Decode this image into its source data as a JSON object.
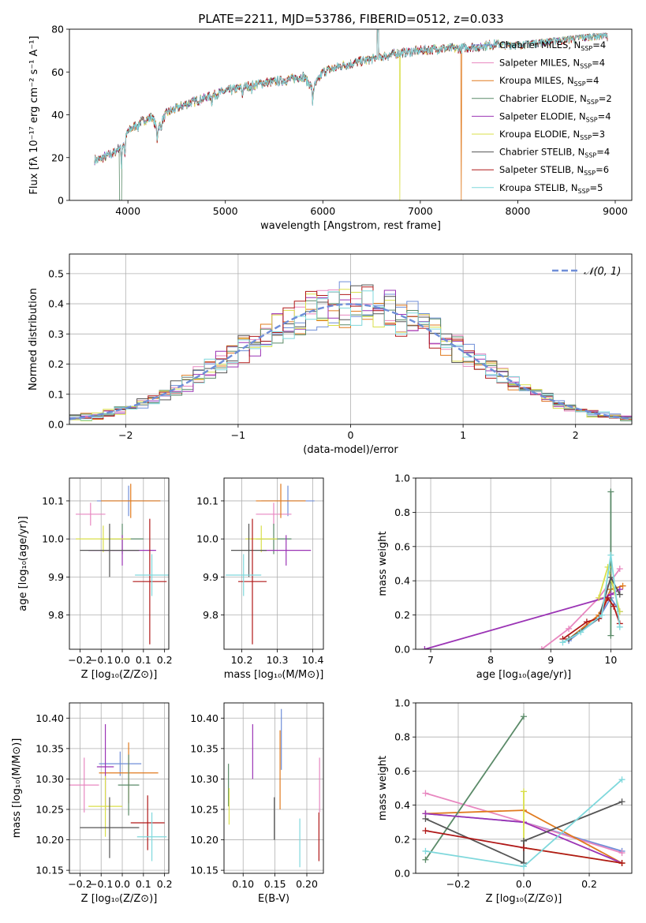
{
  "figure_title": "PLATE=2211, MJD=53786, FIBERID=0512, z=0.033",
  "chart_data": [
    {
      "id": "spectrum",
      "type": "line",
      "title": "PLATE=2211, MJD=53786, FIBERID=0512, z=0.033",
      "xlabel": "wavelength [Angstrom, rest frame]",
      "ylabel": "Flux [fλ 10⁻¹⁷ erg cm⁻² s⁻¹ A⁻¹]",
      "xlim": [
        3400,
        9170
      ],
      "ylim": [
        0,
        80
      ],
      "xticks": [
        4000,
        5000,
        6000,
        7000,
        8000,
        9000
      ],
      "yticks": [
        0,
        20,
        40,
        60,
        80
      ],
      "grid": false,
      "legend_position": "top-right",
      "continuum_x": [
        3700,
        3850,
        3950,
        4000,
        4100,
        4250,
        4300,
        4400,
        4600,
        4800,
        5000,
        5200,
        5400,
        5600,
        5800,
        5900,
        6000,
        6200,
        6400,
        6600,
        6800,
        7000,
        7200,
        7400,
        7600,
        7800,
        8000,
        8200,
        8400,
        8600,
        8800,
        8900
      ],
      "continuum_y": [
        19,
        22,
        26,
        32,
        36,
        39,
        33,
        41,
        45,
        48,
        51,
        53,
        55,
        56,
        58,
        52,
        60,
        63,
        65,
        67,
        69,
        70,
        71,
        71,
        72,
        73,
        73,
        74,
        75,
        76,
        77,
        77
      ],
      "series": [
        {
          "name": "Chabrier MILES, N_SSP=4",
          "color": "#6f8ed8",
          "cutoff": null
        },
        {
          "name": "Salpeter MILES, N_SSP=4",
          "color": "#e887c0",
          "cutoff": null
        },
        {
          "name": "Kroupa MILES, N_SSP=4",
          "color": "#e07a1e",
          "cutoff": 7420
        },
        {
          "name": "Chabrier ELODIE, N_SSP=2",
          "color": "#5a8a68",
          "cutoff": null
        },
        {
          "name": "Salpeter ELODIE, N_SSP=4",
          "color": "#9b34b5",
          "cutoff": null
        },
        {
          "name": "Kroupa ELODIE, N_SSP=3",
          "color": "#d9df4a",
          "cutoff": 6790
        },
        {
          "name": "Chabrier STELIB, N_SSP=4",
          "color": "#555555",
          "cutoff": null
        },
        {
          "name": "Salpeter STELIB, N_SSP=6",
          "color": "#b01818",
          "cutoff": null
        },
        {
          "name": "Kroupa STELIB, N_SSP=5",
          "color": "#7fd8dc",
          "cutoff": null
        }
      ]
    },
    {
      "id": "residuals",
      "type": "histogram",
      "xlabel": "(data-model)/error",
      "ylabel": "Normed distribution",
      "xlim": [
        -2.5,
        2.5
      ],
      "ylim": [
        0,
        0.565
      ],
      "xticks": [
        -2,
        -1,
        0,
        1,
        2
      ],
      "yticks": [
        0.0,
        0.1,
        0.2,
        0.3,
        0.4,
        0.5
      ],
      "grid": true,
      "legend_position": "top-right",
      "reference_curve": {
        "name": "𝒩(0, 1)",
        "color": "#6f8ed8",
        "mean": 0,
        "sigma": 1
      }
    },
    {
      "id": "age_vs_Z",
      "type": "errorbar",
      "xlabel": "Z [log₁₀(Z/Z⊙)]",
      "ylabel": "age  [log₁₀(age/yr)]",
      "xlim": [
        -0.25,
        0.22
      ],
      "ylim": [
        9.71,
        10.16
      ],
      "xticks": [
        -0.2,
        -0.1,
        0.0,
        0.1,
        0.2
      ],
      "yticks": [
        9.8,
        9.9,
        10.0,
        10.1
      ],
      "grid": true,
      "points": [
        {
          "x": 0.03,
          "xerr": 0.15,
          "y": 10.1,
          "yerr": 0.04,
          "color": "#6f8ed8"
        },
        {
          "x": -0.15,
          "xerr": 0.07,
          "y": 10.065,
          "yerr": 0.03,
          "color": "#e887c0"
        },
        {
          "x": 0.04,
          "xerr": 0.14,
          "y": 10.1,
          "yerr": 0.045,
          "color": "#e07a1e"
        },
        {
          "x": 0.0,
          "xerr": 0.1,
          "y": 10.0,
          "yerr": 0.04,
          "color": "#5a8a68"
        },
        {
          "x": 0.0,
          "xerr": 0.16,
          "y": 9.97,
          "yerr": 0.04,
          "color": "#9b34b5"
        },
        {
          "x": -0.09,
          "xerr": 0.13,
          "y": 10.0,
          "yerr": 0.035,
          "color": "#d9df4a"
        },
        {
          "x": -0.06,
          "xerr": 0.14,
          "y": 9.97,
          "yerr": 0.07,
          "color": "#555555"
        },
        {
          "x": 0.13,
          "xerr": 0.08,
          "y": 9.888,
          "yerr": 0.165,
          "color": "#b01818"
        },
        {
          "x": 0.14,
          "xerr": 0.08,
          "y": 9.905,
          "yerr": 0.055,
          "color": "#7fd8dc"
        }
      ]
    },
    {
      "id": "age_vs_mass",
      "type": "errorbar",
      "xlabel": "mass [log₁₀(M/M⊙)]",
      "ylabel": "",
      "xlim": [
        10.15,
        10.43
      ],
      "ylim": [
        9.71,
        10.16
      ],
      "xticks": [
        10.2,
        10.3,
        10.4
      ],
      "yticks": [
        9.8,
        9.9,
        10.0,
        10.1
      ],
      "grid": true,
      "points": [
        {
          "x": 10.33,
          "xerr": 0.075,
          "y": 10.1,
          "yerr": 0.04,
          "color": "#6f8ed8"
        },
        {
          "x": 10.29,
          "xerr": 0.05,
          "y": 10.065,
          "yerr": 0.03,
          "color": "#e887c0"
        },
        {
          "x": 10.31,
          "xerr": 0.07,
          "y": 10.1,
          "yerr": 0.045,
          "color": "#e07a1e"
        },
        {
          "x": 10.29,
          "xerr": 0.05,
          "y": 10.0,
          "yerr": 0.04,
          "color": "#5a8a68"
        },
        {
          "x": 10.325,
          "xerr": 0.07,
          "y": 9.97,
          "yerr": 0.04,
          "color": "#9b34b5"
        },
        {
          "x": 10.255,
          "xerr": 0.045,
          "y": 10.0,
          "yerr": 0.035,
          "color": "#d9df4a"
        },
        {
          "x": 10.22,
          "xerr": 0.05,
          "y": 9.97,
          "yerr": 0.07,
          "color": "#555555"
        },
        {
          "x": 10.23,
          "xerr": 0.04,
          "y": 9.888,
          "yerr": 0.165,
          "color": "#b01818"
        },
        {
          "x": 10.205,
          "xerr": 0.05,
          "y": 9.905,
          "yerr": 0.055,
          "color": "#7fd8dc"
        }
      ]
    },
    {
      "id": "massweight_vs_age",
      "type": "line",
      "xlabel": "age  [log₁₀(age/yr)]",
      "ylabel": "mass weight",
      "xlim": [
        6.75,
        10.35
      ],
      "ylim": [
        0.0,
        1.0
      ],
      "xticks": [
        7,
        8,
        9,
        10
      ],
      "yticks": [
        0.0,
        0.2,
        0.4,
        0.6,
        0.8,
        1.0
      ],
      "grid": true,
      "series": [
        {
          "color": "#6f8ed8",
          "x": [
            9.3,
            9.8,
            10.0,
            10.15
          ],
          "y": [
            0.05,
            0.18,
            0.3,
            0.22
          ]
        },
        {
          "color": "#e887c0",
          "x": [
            8.85,
            9.3,
            9.8,
            10.15
          ],
          "y": [
            0.0,
            0.12,
            0.3,
            0.47
          ]
        },
        {
          "color": "#e07a1e",
          "x": [
            9.3,
            9.8,
            10.0,
            10.2
          ],
          "y": [
            0.06,
            0.2,
            0.35,
            0.37
          ]
        },
        {
          "color": "#5a8a68",
          "x": [
            10.0,
            10.0
          ],
          "y": [
            0.08,
            0.92
          ]
        },
        {
          "color": "#9b34b5",
          "x": [
            6.9,
            9.9,
            10.0,
            10.15
          ],
          "y": [
            0.0,
            0.3,
            0.32,
            0.35
          ]
        },
        {
          "color": "#d9df4a",
          "x": [
            9.8,
            9.95,
            10.15
          ],
          "y": [
            0.3,
            0.48,
            0.22
          ]
        },
        {
          "color": "#555555",
          "x": [
            9.3,
            9.8,
            10.0,
            10.15
          ],
          "y": [
            0.06,
            0.18,
            0.42,
            0.32
          ]
        },
        {
          "color": "#b01818",
          "x": [
            9.2,
            9.6,
            9.8,
            9.95,
            10.05,
            10.15
          ],
          "y": [
            0.06,
            0.16,
            0.18,
            0.3,
            0.25,
            0.15
          ]
        },
        {
          "color": "#7fd8dc",
          "x": [
            9.2,
            9.5,
            9.85,
            10.0,
            10.15
          ],
          "y": [
            0.04,
            0.1,
            0.2,
            0.55,
            0.13
          ]
        }
      ]
    },
    {
      "id": "mass_vs_Z",
      "type": "errorbar",
      "xlabel": "Z [log₁₀(Z/Z⊙)]",
      "ylabel": "mass [log₁₀(M/M⊙)]",
      "xlim": [
        -0.25,
        0.22
      ],
      "ylim": [
        10.145,
        10.425
      ],
      "xticks": [
        -0.2,
        -0.1,
        0.0,
        0.1,
        0.2
      ],
      "yticks": [
        10.15,
        10.2,
        10.25,
        10.3,
        10.35,
        10.4
      ],
      "grid": true,
      "points": [
        {
          "x": -0.01,
          "xerr": 0.1,
          "y": 10.325,
          "yerr": 0.02,
          "color": "#6f8ed8"
        },
        {
          "x": -0.18,
          "xerr": 0.07,
          "y": 10.29,
          "yerr": 0.045,
          "color": "#e887c0"
        },
        {
          "x": 0.03,
          "xerr": 0.14,
          "y": 10.31,
          "yerr": 0.05,
          "color": "#e07a1e"
        },
        {
          "x": 0.03,
          "xerr": 0.05,
          "y": 10.29,
          "yerr": 0.05,
          "color": "#5a8a68"
        },
        {
          "x": -0.08,
          "xerr": 0.04,
          "y": 10.32,
          "yerr": 0.07,
          "color": "#9b34b5"
        },
        {
          "x": -0.08,
          "xerr": 0.08,
          "y": 10.255,
          "yerr": 0.05,
          "color": "#d9df4a"
        },
        {
          "x": -0.06,
          "xerr": 0.14,
          "y": 10.22,
          "yerr": 0.05,
          "color": "#555555"
        },
        {
          "x": 0.12,
          "xerr": 0.08,
          "y": 10.228,
          "yerr": 0.045,
          "color": "#b01818"
        },
        {
          "x": 0.14,
          "xerr": 0.07,
          "y": 10.205,
          "yerr": 0.04,
          "color": "#7fd8dc"
        }
      ]
    },
    {
      "id": "mass_vs_EBV",
      "type": "errorbar",
      "xlabel": "E(B-V)",
      "ylabel": "",
      "xlim": [
        0.07,
        0.226
      ],
      "ylim": [
        10.145,
        10.425
      ],
      "xticks": [
        0.1,
        0.15,
        0.2
      ],
      "yticks": [
        10.15,
        10.2,
        10.25,
        10.3,
        10.35,
        10.4
      ],
      "grid": true,
      "points": [
        {
          "x": 0.16,
          "xerr": 0.0,
          "y": 10.365,
          "yerr": 0.05,
          "color": "#6f8ed8"
        },
        {
          "x": 0.22,
          "xerr": 0.0,
          "y": 10.29,
          "yerr": 0.045,
          "color": "#e887c0"
        },
        {
          "x": 0.158,
          "xerr": 0.0,
          "y": 10.315,
          "yerr": 0.065,
          "color": "#e07a1e"
        },
        {
          "x": 0.077,
          "xerr": 0.0,
          "y": 10.29,
          "yerr": 0.035,
          "color": "#5a8a68"
        },
        {
          "x": 0.115,
          "xerr": 0.0,
          "y": 10.345,
          "yerr": 0.045,
          "color": "#9b34b5"
        },
        {
          "x": 0.078,
          "xerr": 0.0,
          "y": 10.255,
          "yerr": 0.03,
          "color": "#d9df4a"
        },
        {
          "x": 0.149,
          "xerr": 0.0,
          "y": 10.235,
          "yerr": 0.035,
          "color": "#555555"
        },
        {
          "x": 0.219,
          "xerr": 0.0,
          "y": 10.205,
          "yerr": 0.04,
          "color": "#b01818"
        },
        {
          "x": 0.189,
          "xerr": 0.0,
          "y": 10.195,
          "yerr": 0.04,
          "color": "#7fd8dc"
        }
      ]
    },
    {
      "id": "massweight_vs_Z",
      "type": "line",
      "xlabel": "Z [log₁₀(Z/Z⊙)]",
      "ylabel": "mass weight",
      "xlim": [
        -0.33,
        0.33
      ],
      "ylim": [
        0.0,
        1.0
      ],
      "xticks": [
        -0.2,
        0.0,
        0.2
      ],
      "yticks": [
        0.0,
        0.2,
        0.4,
        0.6,
        0.8,
        1.0
      ],
      "grid": true,
      "series": [
        {
          "color": "#6f8ed8",
          "x": [
            -0.3,
            0.0,
            0.3
          ],
          "y": [
            0.35,
            0.3,
            0.13
          ]
        },
        {
          "color": "#e887c0",
          "x": [
            -0.3,
            0.0,
            0.3
          ],
          "y": [
            0.47,
            0.3,
            0.12
          ]
        },
        {
          "color": "#e07a1e",
          "x": [
            -0.3,
            0.0,
            0.3
          ],
          "y": [
            0.35,
            0.37,
            0.06
          ]
        },
        {
          "color": "#5a8a68",
          "x": [
            -0.3,
            0.0
          ],
          "y": [
            0.08,
            0.92
          ]
        },
        {
          "color": "#9b34b5",
          "x": [
            -0.3,
            0.0,
            0.3
          ],
          "y": [
            0.35,
            0.3,
            0.06
          ]
        },
        {
          "color": "#d9df4a",
          "x": [
            0.0,
            0.0,
            0.3
          ],
          "y": [
            0.48,
            0.15,
            0.06
          ]
        },
        {
          "color": "#555555",
          "x": [
            -0.3,
            0.0,
            0.0,
            0.3
          ],
          "y": [
            0.32,
            0.06,
            0.19,
            0.42
          ]
        },
        {
          "color": "#b01818",
          "x": [
            -0.3,
            0.0,
            0.3
          ],
          "y": [
            0.25,
            0.15,
            0.06
          ]
        },
        {
          "color": "#7fd8dc",
          "x": [
            -0.3,
            0.0,
            0.3
          ],
          "y": [
            0.13,
            0.04,
            0.55
          ]
        }
      ]
    }
  ]
}
